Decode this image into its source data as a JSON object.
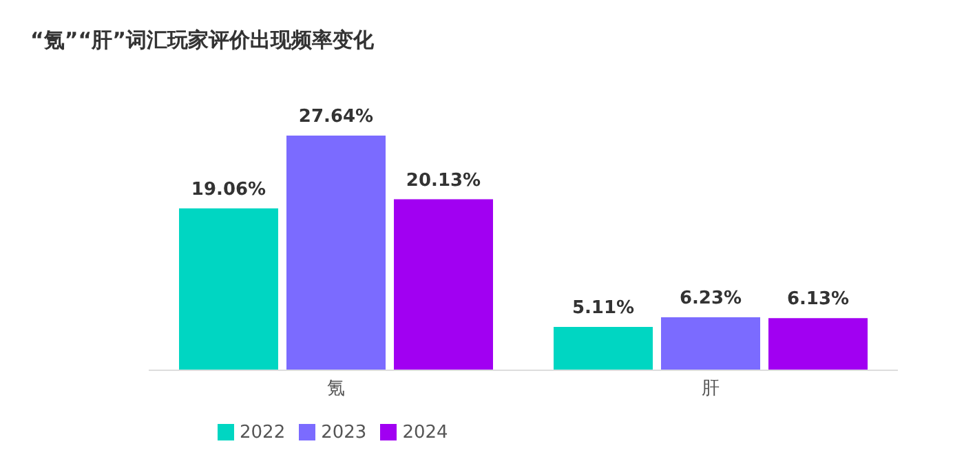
{
  "chart_data": {
    "type": "bar",
    "title": "“氪”“肝”词汇玩家评价出现频率变化",
    "categories": [
      "氪",
      "肝"
    ],
    "series": [
      {
        "name": "2022",
        "color": "#00d6c2",
        "values": [
          19.06,
          5.11
        ],
        "value_labels": [
          "19.06%",
          "5.11%"
        ]
      },
      {
        "name": "2023",
        "color": "#7b6bff",
        "values": [
          27.64,
          6.23
        ],
        "value_labels": [
          "27.64%",
          "6.23%"
        ]
      },
      {
        "name": "2024",
        "color": "#a100f2",
        "values": [
          20.13,
          6.13
        ],
        "value_labels": [
          "20.13%",
          "6.13%"
        ]
      }
    ],
    "legend": "bottom left",
    "grid": false
  }
}
